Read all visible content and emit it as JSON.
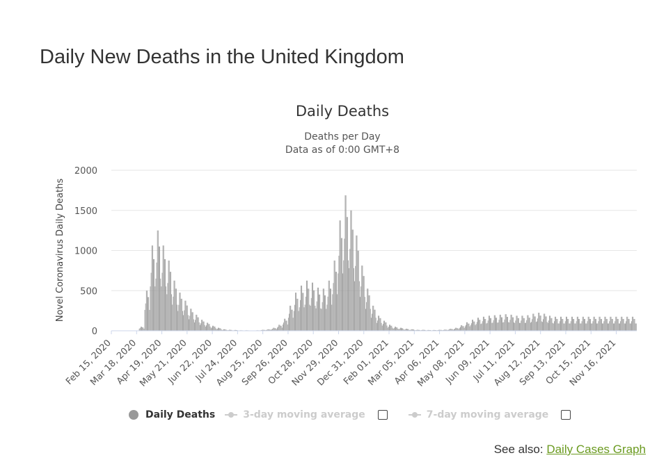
{
  "page": {
    "title": "Daily New Deaths in the United Kingdom",
    "see_also_prefix": "See also:",
    "see_also_link": "Daily Cases Graph"
  },
  "legend": {
    "items": [
      {
        "label": "Daily Deaths",
        "active": true
      },
      {
        "label": "3-day moving average",
        "active": false
      },
      {
        "label": "7-day moving average",
        "active": false
      }
    ]
  },
  "colors": {
    "bars": "#999999",
    "grid": "#e6e6e6",
    "link": "#6a9a1f"
  },
  "chart_data": {
    "type": "bar",
    "title": "Daily Deaths",
    "subtitle_lines": [
      "Deaths per Day",
      "Data as of 0:00 GMT+8"
    ],
    "ylabel": "Novel Coronavirus Daily Deaths",
    "xlabel": "",
    "ylim": [
      0,
      2000
    ],
    "yticks": [
      0,
      500,
      1000,
      1500,
      2000
    ],
    "grid": true,
    "x_start": "2020-02-15",
    "x_end": "2021-12-11",
    "x_tick_labels": [
      "Feb 15, 2020",
      "Mar 18, 2020",
      "Apr 19, 2020",
      "May 21, 2020",
      "Jun 22, 2020",
      "Jul 24, 2020",
      "Aug 25, 2020",
      "Sep 26, 2020",
      "Oct 28, 2020",
      "Nov 29, 2020",
      "Dec 31, 2020",
      "Feb 01, 2021",
      "Mar 05, 2021",
      "Apr 06, 2021",
      "May 08, 2021",
      "Jun 09, 2021",
      "Jul 11, 2021",
      "Aug 12, 2021",
      "Sep 13, 2021",
      "Oct 15, 2021",
      "Nov 16, 2021"
    ],
    "series": [
      {
        "name": "Daily Deaths",
        "weekly_values": [
          0,
          0,
          0,
          0,
          2,
          40,
          400,
          850,
          1000,
          850,
          700,
          500,
          380,
          300,
          220,
          160,
          110,
          80,
          50,
          30,
          15,
          10,
          8,
          5,
          5,
          3,
          5,
          10,
          15,
          30,
          60,
          120,
          250,
          380,
          450,
          500,
          480,
          430,
          420,
          500,
          700,
          1100,
          1350,
          1200,
          950,
          650,
          420,
          250,
          150,
          100,
          60,
          40,
          30,
          20,
          15,
          10,
          10,
          8,
          8,
          10,
          12,
          20,
          30,
          55,
          85,
          110,
          130,
          140,
          150,
          155,
          160,
          165,
          160,
          150,
          150,
          155,
          170,
          180,
          170,
          150,
          140
        ]
      }
    ]
  }
}
